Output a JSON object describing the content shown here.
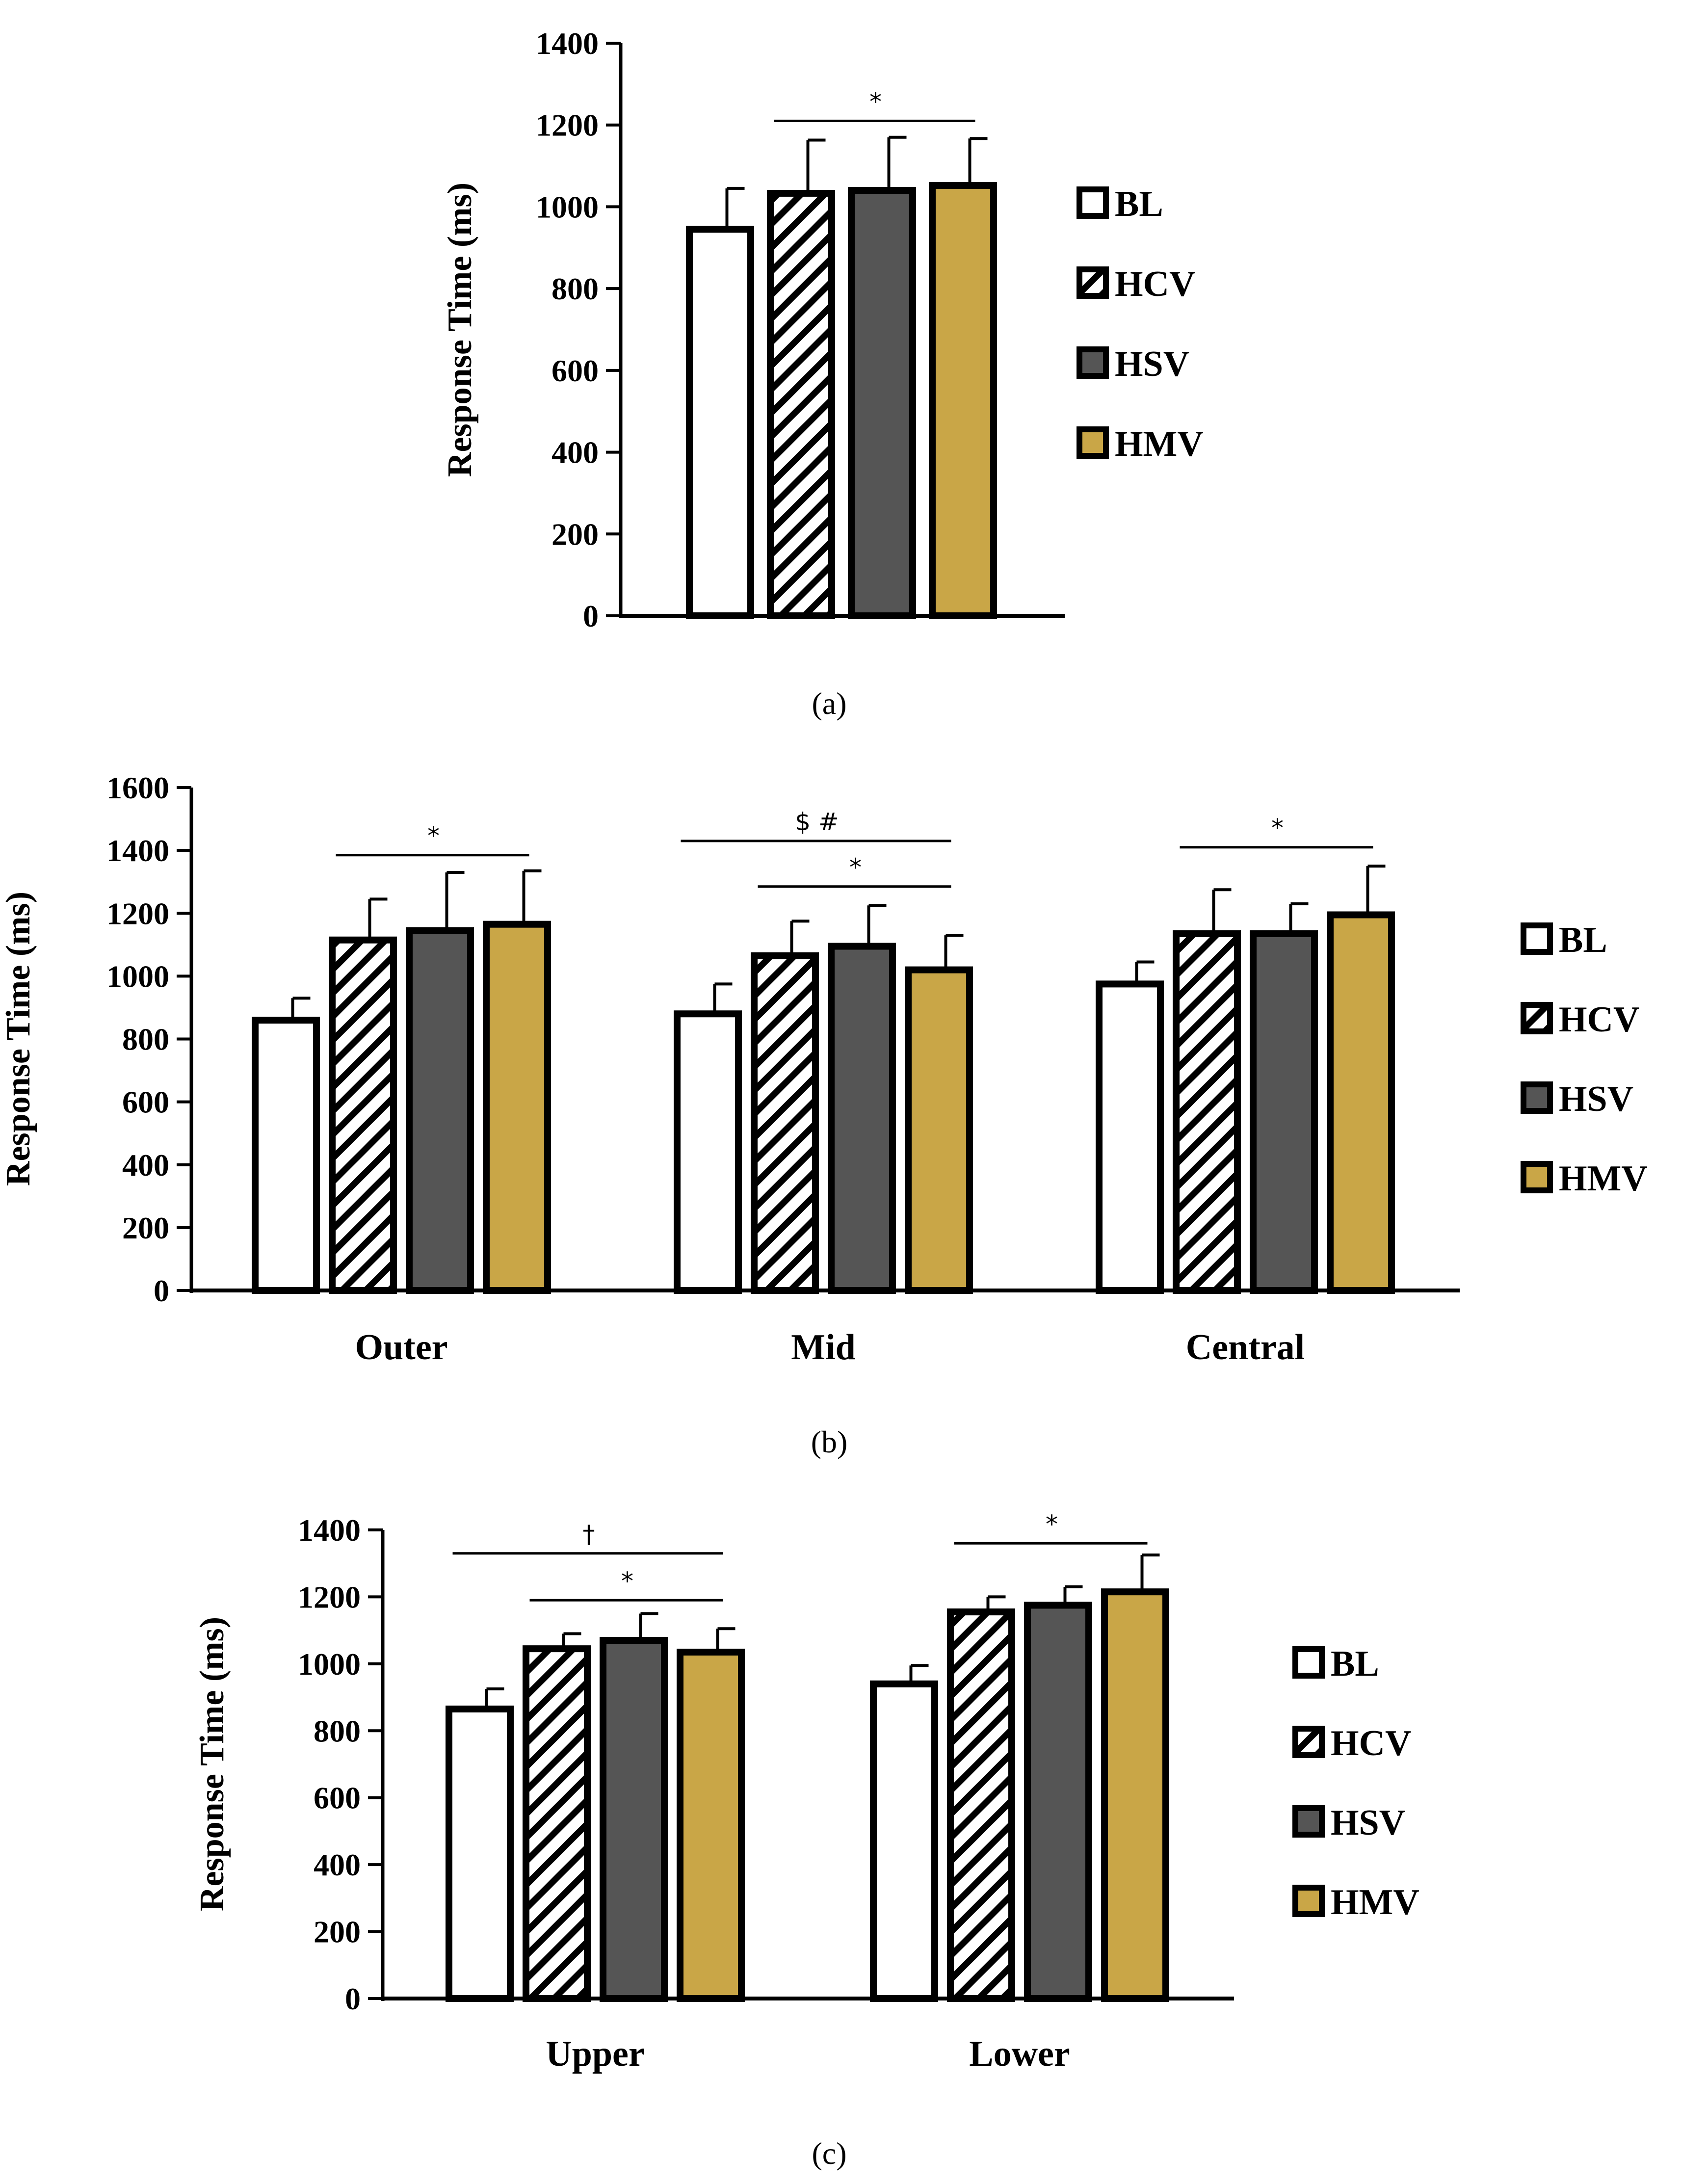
{
  "figure": {
    "panel_labels": [
      "(a)",
      "(b)",
      "(c)"
    ]
  },
  "colors": {
    "BL": "#ffffff",
    "HCV": "hatch",
    "HSV": "#555555",
    "HMV": "#c9a647",
    "stroke": "#000000"
  },
  "legend": [
    "BL",
    "HCV",
    "HSV",
    "HMV"
  ],
  "chart_data": [
    {
      "type": "bar",
      "panel": "(a)",
      "title": "",
      "xlabel": "",
      "ylabel": "Response Time (ms)",
      "ylim": [
        0,
        1400
      ],
      "yticks": [
        0,
        200,
        400,
        600,
        800,
        1000,
        1200,
        1400
      ],
      "categories": [
        ""
      ],
      "series": [
        {
          "name": "BL",
          "values": [
            945
          ],
          "errors": [
            100
          ]
        },
        {
          "name": "HCV",
          "values": [
            1033
          ],
          "errors": [
            130
          ]
        },
        {
          "name": "HSV",
          "values": [
            1040
          ],
          "errors": [
            130
          ]
        },
        {
          "name": "HMV",
          "values": [
            1052
          ],
          "errors": [
            115
          ]
        }
      ],
      "annotations": [
        {
          "text": "*",
          "category": 0,
          "from": "HCV",
          "to": "HMV",
          "y": 1210
        }
      ]
    },
    {
      "type": "bar",
      "panel": "(b)",
      "title": "",
      "xlabel": "",
      "ylabel": "Response Time (ms)",
      "ylim": [
        0,
        1600
      ],
      "yticks": [
        0,
        200,
        400,
        600,
        800,
        1000,
        1200,
        1400,
        1600
      ],
      "categories": [
        "Outer",
        "Mid",
        "Central"
      ],
      "series": [
        {
          "name": "BL",
          "values": [
            860,
            880,
            975
          ],
          "errors": [
            70,
            95,
            70
          ]
        },
        {
          "name": "HCV",
          "values": [
            1115,
            1065,
            1135
          ],
          "errors": [
            130,
            110,
            140
          ]
        },
        {
          "name": "HSV",
          "values": [
            1145,
            1095,
            1135
          ],
          "errors": [
            185,
            130,
            95
          ]
        },
        {
          "name": "HMV",
          "values": [
            1165,
            1020,
            1195
          ],
          "errors": [
            170,
            110,
            155
          ]
        }
      ],
      "annotations": [
        {
          "text": "*",
          "category": 0,
          "from": "HCV",
          "to": "HMV",
          "y": 1385
        },
        {
          "text": "$ #",
          "category": 1,
          "from": "BL",
          "to": "HMV",
          "y": 1430
        },
        {
          "text": "*",
          "category": 1,
          "from": "HCV",
          "to": "HMV",
          "y": 1285
        },
        {
          "text": "*",
          "category": 2,
          "from": "HCV",
          "to": "HMV",
          "y": 1410
        }
      ]
    },
    {
      "type": "bar",
      "panel": "(c)",
      "title": "",
      "xlabel": "",
      "ylabel": "Response Time (ms)",
      "ylim": [
        0,
        1400
      ],
      "yticks": [
        0,
        200,
        400,
        600,
        800,
        1000,
        1200,
        1400
      ],
      "categories": [
        "Upper",
        "Lower"
      ],
      "series": [
        {
          "name": "BL",
          "values": [
            865,
            940
          ],
          "errors": [
            60,
            55
          ]
        },
        {
          "name": "HCV",
          "values": [
            1045,
            1155
          ],
          "errors": [
            45,
            45
          ]
        },
        {
          "name": "HSV",
          "values": [
            1070,
            1175
          ],
          "errors": [
            80,
            55
          ]
        },
        {
          "name": "HMV",
          "values": [
            1035,
            1215
          ],
          "errors": [
            70,
            110
          ]
        }
      ],
      "annotations": [
        {
          "text": "†",
          "category": 0,
          "from": "BL",
          "to": "HMV",
          "y": 1330
        },
        {
          "text": "*",
          "category": 0,
          "from": "HCV",
          "to": "HMV",
          "y": 1190
        },
        {
          "text": "*",
          "category": 1,
          "from": "HCV",
          "to": "HMV",
          "y": 1360
        }
      ]
    }
  ]
}
